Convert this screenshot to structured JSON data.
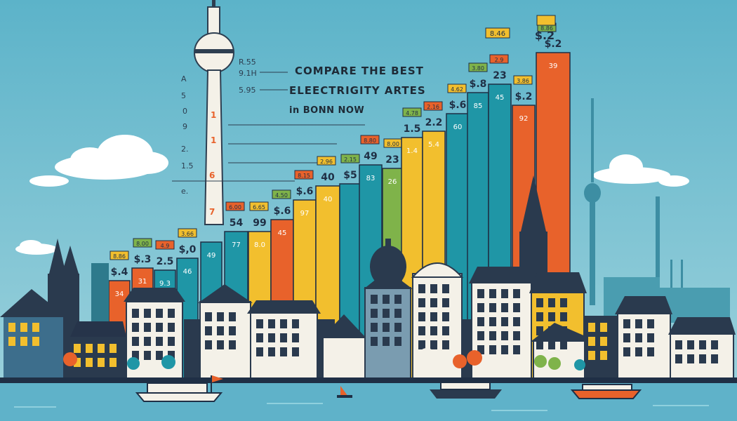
{
  "headline": {
    "line1": "COMPARE THE  BEST",
    "line2": "ELEECTRIGITY  ARTES",
    "line3": "in BONN NOW"
  },
  "side_labels": [
    "R.55",
    "9.1H",
    "5.95",
    "A",
    "5",
    "0",
    "9",
    "2.",
    "1.5",
    "e."
  ],
  "tower_labels": [
    "1",
    "1",
    "6",
    "7"
  ],
  "bars": [
    {
      "label": "34",
      "price": "$.4",
      "tag": "8.86"
    },
    {
      "label": "31",
      "price": "$.3",
      "tag": "8.00"
    },
    {
      "label": "9.3",
      "price": "2.5",
      "tag": "4.9"
    },
    {
      "label": "46",
      "price": "$,0",
      "tag": "3.66"
    },
    {
      "label": "49",
      "price": "",
      "tag": ""
    },
    {
      "label": "77",
      "price": "54",
      "tag": "6.00"
    },
    {
      "label": "8.0",
      "price": "99",
      "tag": "6.65"
    },
    {
      "label": "45",
      "price": "$.6",
      "tag": "4.50"
    },
    {
      "label": "97",
      "price": "$.6",
      "tag": "8.15"
    },
    {
      "label": "40",
      "price": "40",
      "tag": "2.96"
    },
    {
      "label": "",
      "price": "$5",
      "tag": "2.15"
    },
    {
      "label": "83",
      "price": "49",
      "tag": "8.80"
    },
    {
      "label": "26",
      "price": "23",
      "tag": "8.00"
    },
    {
      "label": "1.4",
      "price": "1.5",
      "tag": "4.78"
    },
    {
      "label": "5.4",
      "price": "2.2",
      "tag": "2.16"
    },
    {
      "label": "60",
      "price": "$.6",
      "tag": "4.62"
    },
    {
      "label": "85",
      "price": "$.8",
      "tag": "3.80"
    },
    {
      "label": "45",
      "price": "23",
      "tag": "2.9"
    },
    {
      "label": "92",
      "price": "$.2",
      "tag": "3.86"
    },
    {
      "label": "39",
      "price": "$.2",
      "tag": "8.86"
    }
  ],
  "top_tags": {
    "left": "8.46",
    "right": "$.2"
  },
  "colors": {
    "sky": "#6dbcd0",
    "water": "#5fb2c9",
    "teal": "#1f96a6",
    "orange": "#e8622b",
    "yellow": "#f2bf2e",
    "green": "#7fb34a",
    "navy": "#1f2f45"
  }
}
